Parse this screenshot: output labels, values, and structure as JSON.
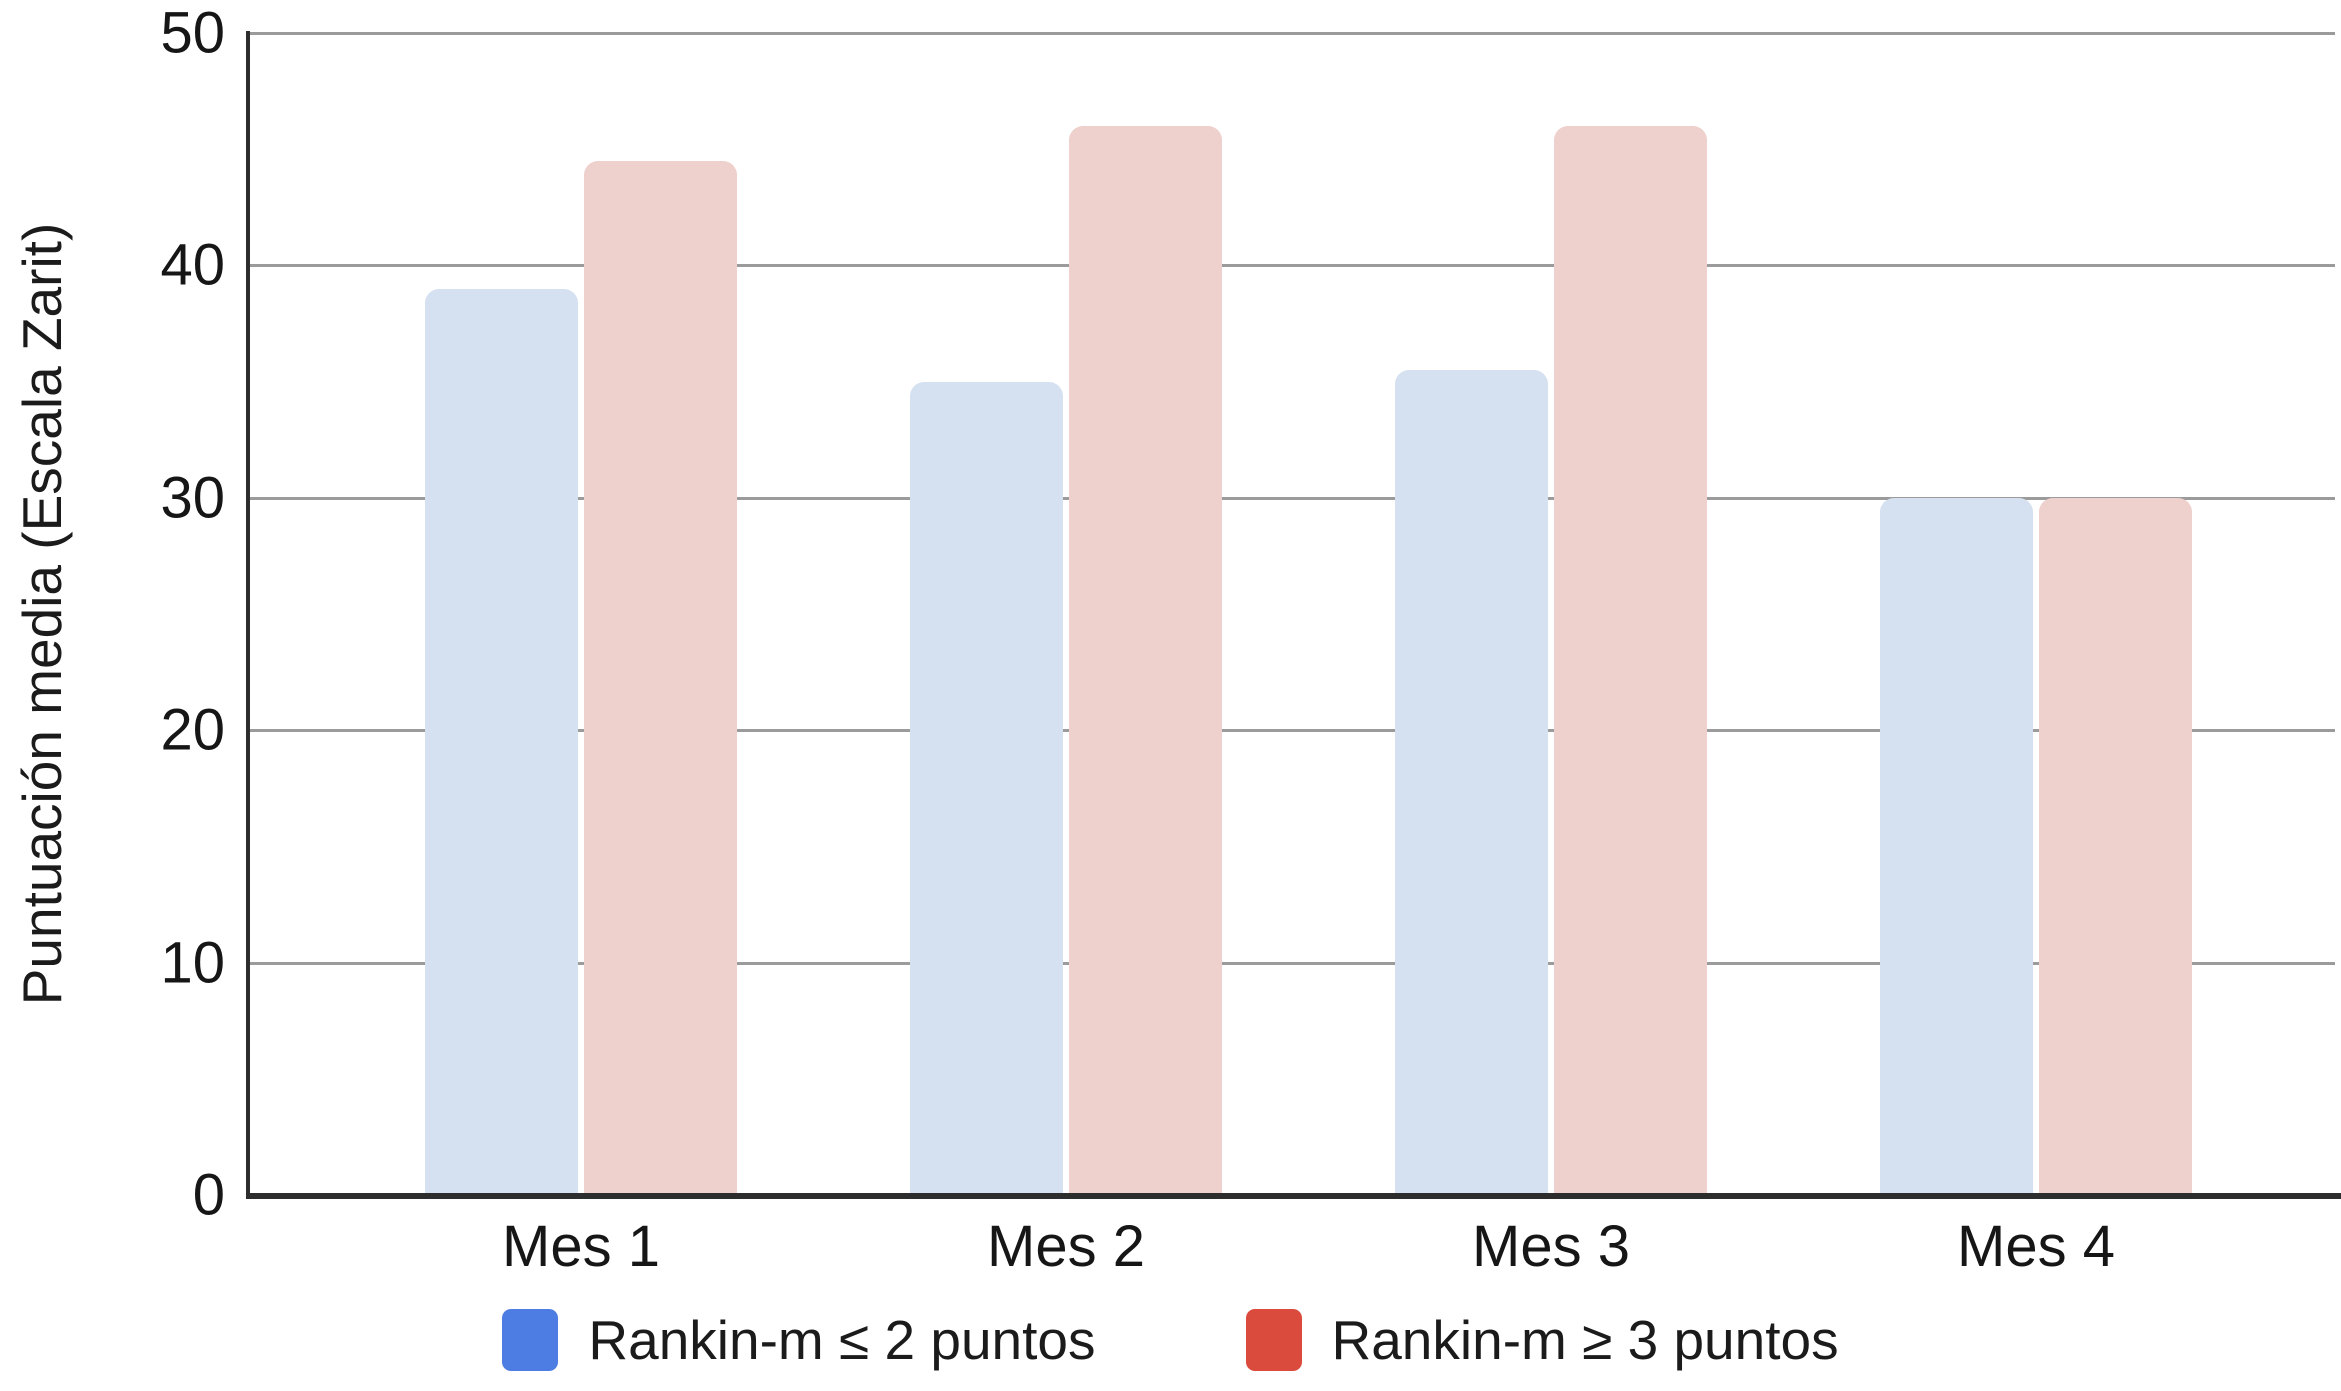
{
  "chart_data": {
    "type": "bar",
    "title": "",
    "xlabel": "",
    "ylabel": "Puntuación media (Escala Zarit)",
    "categories": [
      "Mes 1",
      "Mes 2",
      "Mes 3",
      "Mes 4"
    ],
    "series": [
      {
        "name": "Rankin-m ≤ 2 puntos",
        "legend_color": "#4d7ce2",
        "bar_color": "#d5e1f0",
        "values": [
          39,
          35,
          35.5,
          30
        ]
      },
      {
        "name": "Rankin-m ≥ 3 puntos",
        "legend_color": "#db4b3d",
        "bar_color": "#eed0cd",
        "values": [
          44.5,
          46,
          46,
          30
        ]
      }
    ],
    "ylim": [
      0,
      50
    ],
    "yticks": [
      0,
      10,
      20,
      30,
      40,
      50
    ],
    "grid": true,
    "legend_position": "bottom"
  },
  "colors": {
    "gridline": "#9b9b9b",
    "axis": "#2d2d2d",
    "text": "#161616",
    "background": "#ffffff"
  }
}
